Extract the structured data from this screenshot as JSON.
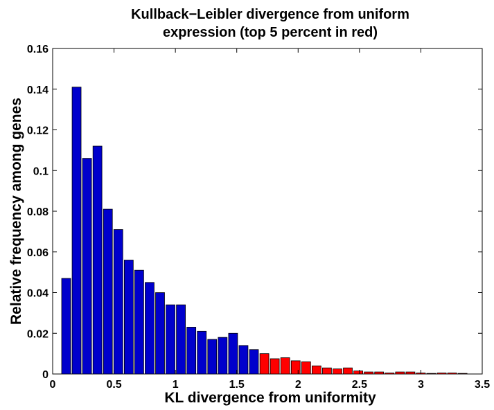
{
  "chart_data": {
    "type": "bar",
    "title_line1": "Kullback−Leibler divergence from uniform",
    "title_line2": "expression (top 5 percent in red)",
    "xlabel": "KL divergence from uniformity",
    "ylabel": "Relative frequency among genes",
    "xlim": [
      0,
      3.5
    ],
    "ylim": [
      0,
      0.16
    ],
    "xticks": [
      "0",
      "0.5",
      "1",
      "1.5",
      "2",
      "2.5",
      "3",
      "3.5"
    ],
    "yticks": [
      "0",
      "0.02",
      "0.04",
      "0.06",
      "0.08",
      "0.1",
      "0.12",
      "0.14",
      "0.16"
    ],
    "bin_width": 0.085,
    "colors": {
      "normal": "#0000cc",
      "top5": "#ff0000",
      "edge": "#000000"
    },
    "series": [
      {
        "bins": [
          0.11,
          0.195,
          0.28,
          0.365,
          0.45,
          0.535,
          0.62,
          0.705,
          0.79,
          0.875,
          0.96,
          1.045,
          1.13,
          1.215,
          1.3,
          1.385,
          1.47,
          1.555,
          1.64
        ],
        "values": [
          0.047,
          0.141,
          0.106,
          0.112,
          0.081,
          0.071,
          0.056,
          0.051,
          0.045,
          0.04,
          0.034,
          0.034,
          0.023,
          0.021,
          0.017,
          0.018,
          0.02,
          0.014,
          0.012
        ]
      },
      {
        "bins": [
          1.725,
          1.81,
          1.895,
          1.98,
          2.065,
          2.15,
          2.235,
          2.32,
          2.405,
          2.49,
          2.575,
          2.66,
          2.745,
          2.83,
          2.915,
          3.0,
          3.085,
          3.17,
          3.255,
          3.34
        ],
        "values": [
          0.01,
          0.0075,
          0.008,
          0.0065,
          0.006,
          0.004,
          0.003,
          0.0025,
          0.003,
          0.0015,
          0.001,
          0.001,
          0.0005,
          0.001,
          0.001,
          0.0005,
          0.0003,
          0.0005,
          0.0005,
          0.0003
        ]
      }
    ]
  }
}
